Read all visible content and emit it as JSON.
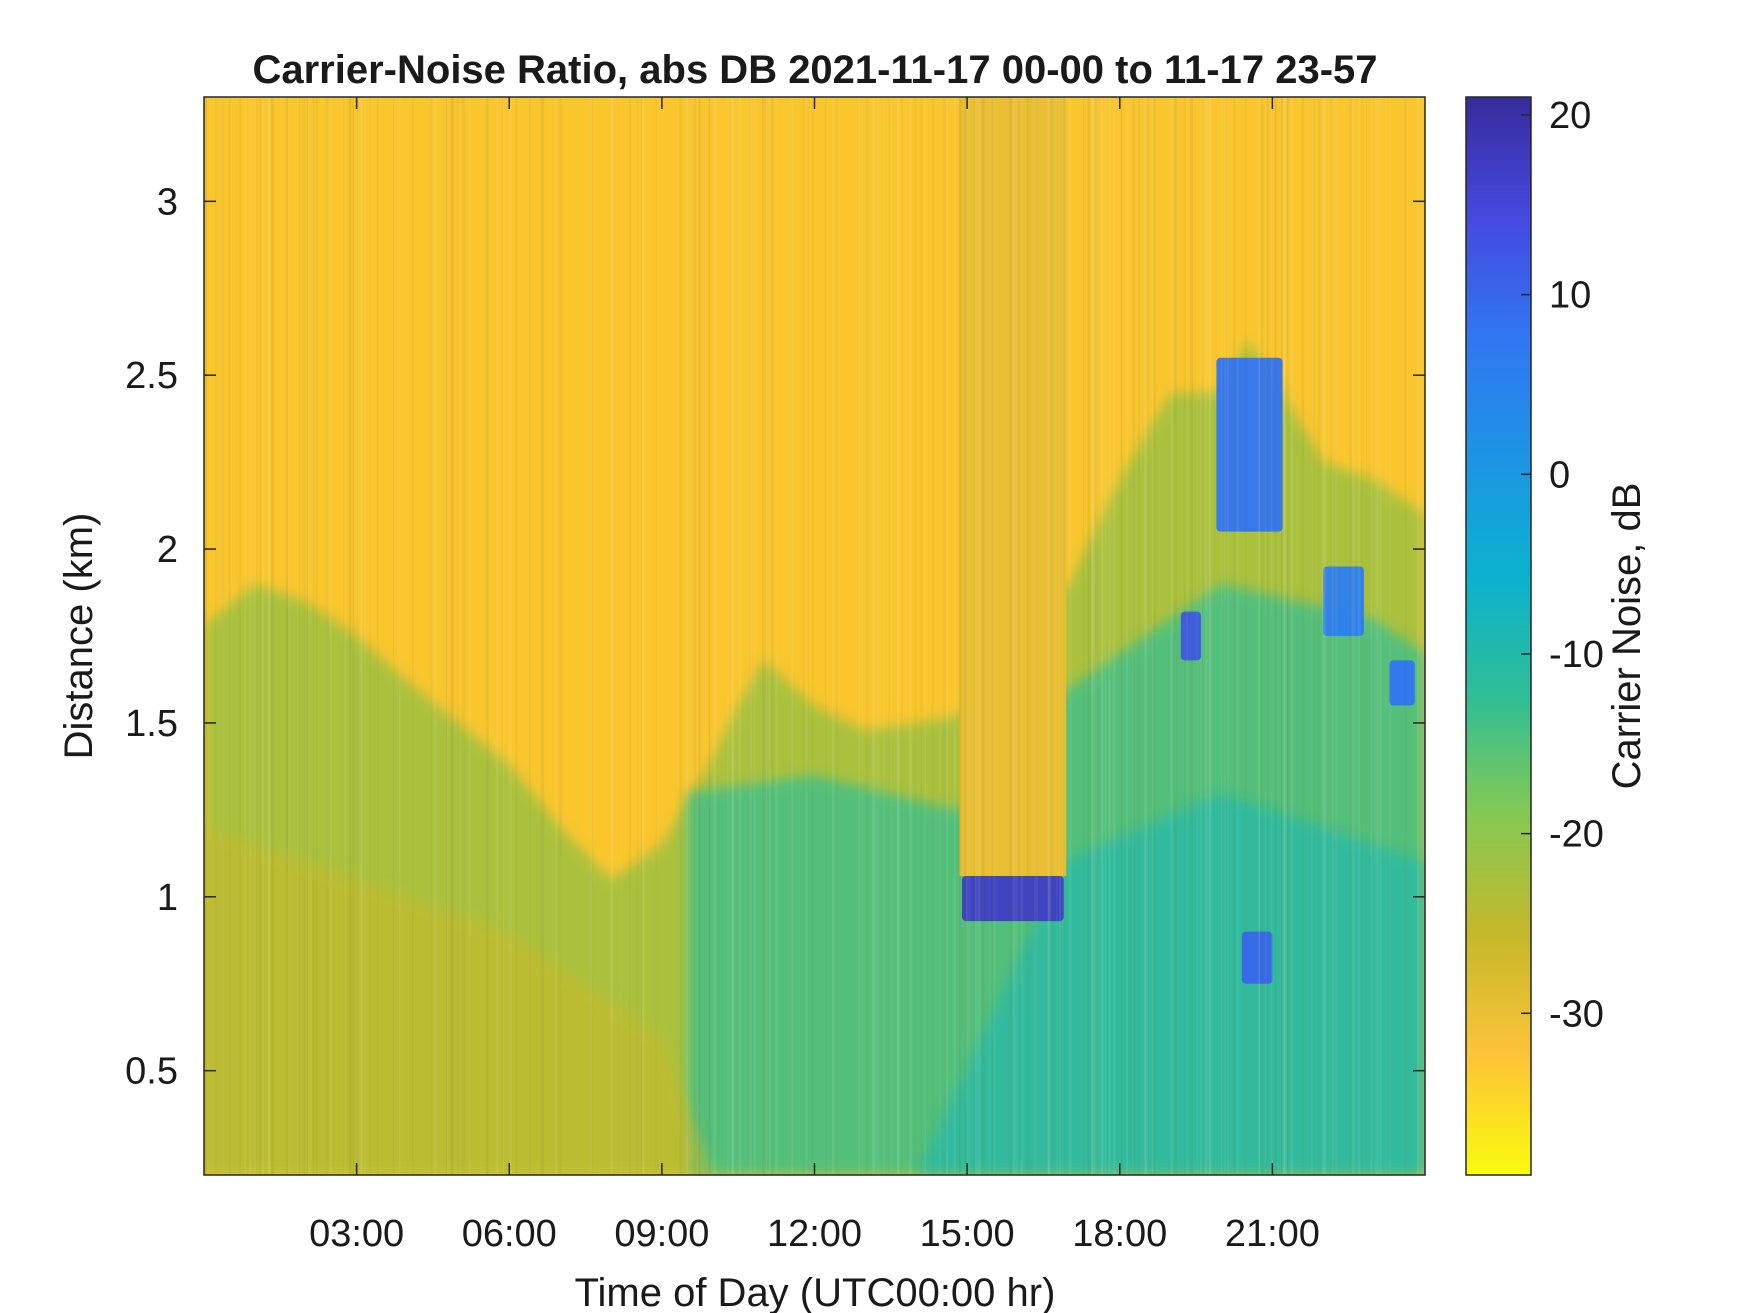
{
  "chart_data": {
    "type": "heatmap",
    "title": "Carrier-Noise Ratio, abs DB 2021-11-17 00-00 to 11-17 23-57",
    "xlabel": "Time of Day (UTC00:00 hr)",
    "ylabel": "Distance (km)",
    "xlim_hours": [
      0,
      24
    ],
    "ylim_km": [
      0.2,
      3.3
    ],
    "x_ticks": [
      {
        "value": 3,
        "label": "03:00"
      },
      {
        "value": 6,
        "label": "06:00"
      },
      {
        "value": 9,
        "label": "09:00"
      },
      {
        "value": 12,
        "label": "12:00"
      },
      {
        "value": 15,
        "label": "15:00"
      },
      {
        "value": 18,
        "label": "18:00"
      },
      {
        "value": 21,
        "label": "21:00"
      }
    ],
    "y_ticks": [
      {
        "value": 0.5,
        "label": "0.5"
      },
      {
        "value": 1,
        "label": "1"
      },
      {
        "value": 1.5,
        "label": "1.5"
      },
      {
        "value": 2,
        "label": "2"
      },
      {
        "value": 2.5,
        "label": "2.5"
      },
      {
        "value": 3,
        "label": "3"
      }
    ],
    "colorbar": {
      "label": "Carrier Noise, dB",
      "range": [
        -39,
        21
      ],
      "colormap": "parula-reversed",
      "colormap_stops": [
        "#F9FB0E",
        "#FEC338",
        "#C6B82B",
        "#86C952",
        "#2FBE96",
        "#0CB1CF",
        "#1D94E4",
        "#3176F3",
        "#4549DE",
        "#372C9C"
      ],
      "ticks": [
        {
          "value": 20,
          "label": "20"
        },
        {
          "value": 10,
          "label": "10"
        },
        {
          "value": 0,
          "label": "0"
        },
        {
          "value": -10,
          "label": "-10"
        },
        {
          "value": -20,
          "label": "-20"
        },
        {
          "value": -30,
          "label": "-30"
        }
      ]
    },
    "background_db": -30,
    "signal_boundary_km": [
      [
        0,
        1.78
      ],
      [
        1,
        1.9
      ],
      [
        2,
        1.85
      ],
      [
        3,
        1.75
      ],
      [
        4,
        1.62
      ],
      [
        5,
        1.5
      ],
      [
        6,
        1.38
      ],
      [
        7,
        1.2
      ],
      [
        8,
        1.05
      ],
      [
        9,
        1.15
      ],
      [
        10,
        1.4
      ],
      [
        10.5,
        1.55
      ],
      [
        11,
        1.68
      ],
      [
        12,
        1.55
      ],
      [
        13,
        1.48
      ],
      [
        14,
        1.5
      ],
      [
        14.8,
        1.52
      ],
      [
        17,
        1.9
      ],
      [
        18,
        2.2
      ],
      [
        19,
        2.45
      ],
      [
        20,
        2.45
      ],
      [
        20.5,
        2.6
      ],
      [
        21,
        2.5
      ],
      [
        22,
        2.25
      ],
      [
        23,
        2.2
      ],
      [
        24,
        2.1
      ]
    ],
    "high_snr_features": [
      {
        "name": "low cloud layer",
        "time_h": [
          14.9,
          16.9
        ],
        "distance_km": [
          0.93,
          1.06
        ],
        "db": 17
      },
      {
        "name": "upper cloud",
        "time_h": [
          19.9,
          21.2
        ],
        "distance_km": [
          2.05,
          2.55
        ],
        "db": 8
      },
      {
        "name": "cloud patch",
        "time_h": [
          19.2,
          19.6
        ],
        "distance_km": [
          1.68,
          1.82
        ],
        "db": 12
      },
      {
        "name": "cloud patch",
        "time_h": [
          20.4,
          21.0
        ],
        "distance_km": [
          0.75,
          0.9
        ],
        "db": 10
      },
      {
        "name": "cloud patch",
        "time_h": [
          22.0,
          22.8
        ],
        "distance_km": [
          1.75,
          1.95
        ],
        "db": 6
      },
      {
        "name": "cloud patch",
        "time_h": [
          23.3,
          23.8
        ],
        "distance_km": [
          1.55,
          1.68
        ],
        "db": 8
      }
    ]
  }
}
